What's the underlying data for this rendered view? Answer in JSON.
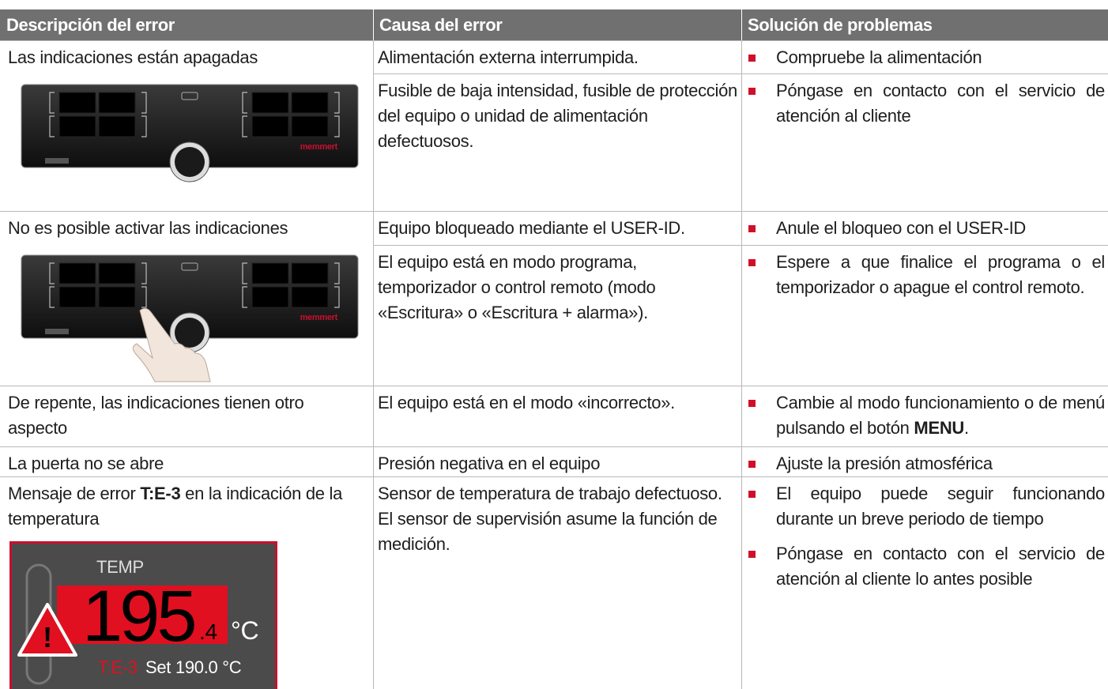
{
  "header": {
    "columns": [
      "Descripción del error",
      "Causa del error",
      "Solución de problemas"
    ]
  },
  "rows": [
    {
      "description": [
        {
          "text": "Las indicaciones están apagadas"
        }
      ],
      "logo": "memmert",
      "causes": [
        {
          "cause": "Alimentación externa interrumpida.",
          "solutions": [
            [
              {
                "text": "Compruebe la alimentación"
              }
            ]
          ]
        },
        {
          "cause": "Fusible de baja intensidad, fusible de protección del equipo o unidad de alimentación defectuosos.",
          "solutions": [
            [
              {
                "text": "Póngase en contacto con el servicio de atención al cliente"
              }
            ]
          ]
        }
      ]
    },
    {
      "description": [
        {
          "text": "No es posible activar las indicaciones"
        }
      ],
      "logo": "memmert",
      "causes": [
        {
          "cause": "Equipo bloqueado mediante el USER-ID.",
          "solutions": [
            [
              {
                "text": "Anule el bloqueo con el USER-ID"
              }
            ]
          ]
        },
        {
          "cause": "El equipo está en modo programa, temporizador o control remoto (modo «Escritura» o «Escritura + alarma»).",
          "solutions": [
            [
              {
                "text": "Espere a que finalice el programa o el temporizador o apague el control remoto."
              }
            ]
          ]
        }
      ]
    },
    {
      "description": [
        {
          "text": "De repente, las indicaciones tienen otro aspecto"
        }
      ],
      "causes": [
        {
          "cause": "El equipo está en el modo «incorrecto».",
          "solutions": [
            [
              {
                "text": "Cambie al modo funcionamiento o de menú pulsando el botón "
              },
              {
                "text": "MENU",
                "bold": true
              },
              {
                "text": "."
              }
            ]
          ]
        }
      ]
    },
    {
      "description": [
        {
          "text": "La puerta no se abre"
        }
      ],
      "causes": [
        {
          "cause": "Presión negativa en el equipo",
          "solutions": [
            [
              {
                "text": "Ajuste la presión atmosférica"
              }
            ]
          ]
        }
      ]
    },
    {
      "description": [
        {
          "text": "Mensaje de error "
        },
        {
          "text": "T:E-3",
          "bold": true
        },
        {
          "text": " en la indicación de la temperatura"
        }
      ],
      "display": {
        "label": "TEMP",
        "value": "195",
        "decimal": ".4",
        "unit": "°C",
        "error": "T:E-3",
        "setpoint": "Set 190.0 °C"
      },
      "causes": [
        {
          "cause": "Sensor de temperatura de trabajo defectuoso. El sensor de supervisión asume la función de medición.",
          "solutions": [
            [
              {
                "text": "El equipo puede seguir funcionando durante un breve periodo de tiempo"
              }
            ],
            [
              {
                "text": "Póngase en contacto con el servicio de atención al cliente lo antes posible"
              }
            ]
          ]
        }
      ]
    }
  ]
}
